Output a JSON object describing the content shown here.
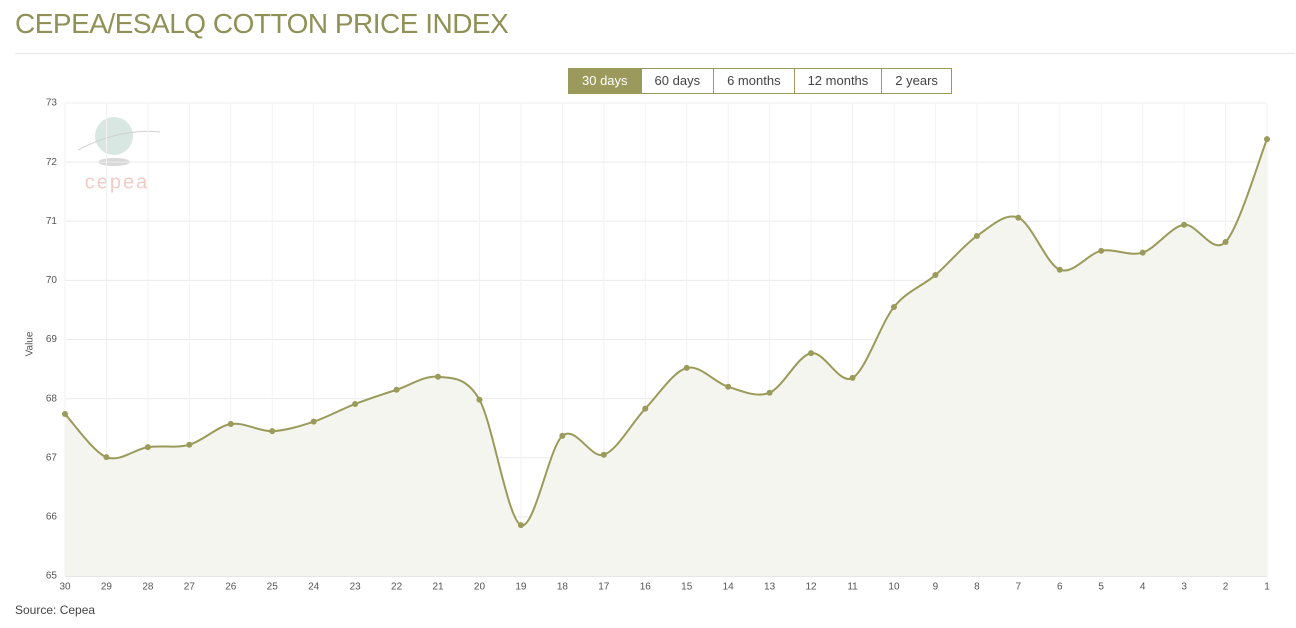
{
  "header": {
    "title": "CEPEA/ESALQ COTTON PRICE INDEX"
  },
  "tabs": [
    "30 days",
    "60 days",
    "6 months",
    "12 months",
    "2 years"
  ],
  "active_tab": 0,
  "logo_text": "cepea",
  "chart_data": {
    "type": "line",
    "y_label": "Value",
    "categories": [
      "30",
      "29",
      "28",
      "27",
      "26",
      "25",
      "24",
      "23",
      "22",
      "21",
      "20",
      "19",
      "18",
      "17",
      "16",
      "15",
      "14",
      "13",
      "12",
      "11",
      "10",
      "9",
      "8",
      "7",
      "6",
      "5",
      "4",
      "3",
      "2",
      "1"
    ],
    "values": [
      67.74,
      67.01,
      67.18,
      67.22,
      67.57,
      67.45,
      67.61,
      67.91,
      68.15,
      68.37,
      67.98,
      65.86,
      67.37,
      67.05,
      67.83,
      68.52,
      68.2,
      68.1,
      68.77,
      68.35,
      69.55,
      70.09,
      70.75,
      71.06,
      70.18,
      70.5,
      70.47,
      70.94,
      70.65,
      72.39
    ],
    "color": "#9a9a5a",
    "area": true,
    "ylim": [
      65,
      73
    ],
    "yticks": [
      65,
      66,
      67,
      68,
      69,
      70,
      71,
      72,
      73
    ],
    "grid": true
  },
  "footer": {
    "source": "Source: Cepea"
  }
}
